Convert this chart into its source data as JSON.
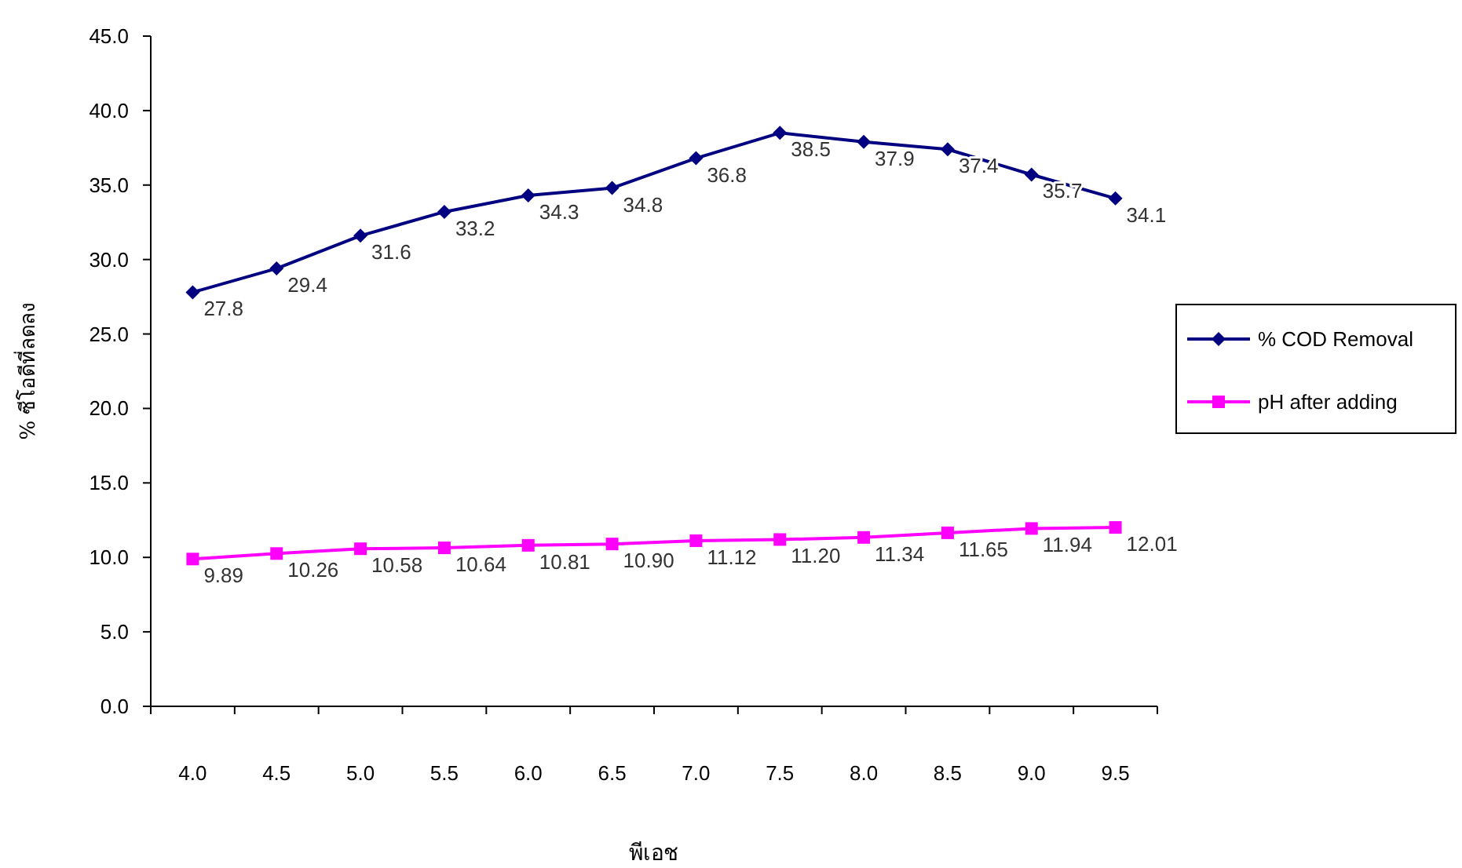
{
  "chart_data": {
    "type": "line",
    "xlabel": "พีเอช",
    "ylabel": "% ซีโอดีที่ลดลง",
    "categories": [
      "4.0",
      "4.5",
      "5.0",
      "5.5",
      "6.0",
      "6.5",
      "7.0",
      "7.5",
      "8.0",
      "8.5",
      "9.0",
      "9.5"
    ],
    "series": [
      {
        "name": "% COD Removal",
        "color": "#000080",
        "marker": "diamond",
        "values": [
          27.8,
          29.4,
          31.6,
          33.2,
          34.3,
          34.8,
          36.8,
          38.5,
          37.9,
          37.4,
          35.7,
          34.1
        ],
        "value_labels": [
          "27.8",
          "29.4",
          "31.6",
          "33.2",
          "34.3",
          "34.8",
          "36.8",
          "38.5",
          "37.9",
          "37.4",
          "35.7",
          "34.1"
        ]
      },
      {
        "name": "pH after adding",
        "color": "#ff00ff",
        "marker": "square",
        "values": [
          9.89,
          10.26,
          10.58,
          10.64,
          10.81,
          10.9,
          11.12,
          11.2,
          11.34,
          11.65,
          11.94,
          12.01
        ],
        "value_labels": [
          "9.89",
          "10.26",
          "10.58",
          "10.64",
          "10.81",
          "10.90",
          "11.12",
          "11.20",
          "11.34",
          "11.65",
          "11.94",
          "12.01"
        ]
      }
    ],
    "ylim": [
      0,
      45
    ],
    "yticks": [
      {
        "value": 0,
        "label": "0.0"
      },
      {
        "value": 5,
        "label": "5.0"
      },
      {
        "value": 10,
        "label": "10.0"
      },
      {
        "value": 15,
        "label": "15.0"
      },
      {
        "value": 20,
        "label": "20.0"
      },
      {
        "value": 25,
        "label": "25.0"
      },
      {
        "value": 30,
        "label": "30.0"
      },
      {
        "value": 35,
        "label": "35.0"
      },
      {
        "value": 40,
        "label": "40.0"
      },
      {
        "value": 45,
        "label": "45.0"
      }
    ],
    "grid": false,
    "legend": "right",
    "line_style": "solid"
  }
}
